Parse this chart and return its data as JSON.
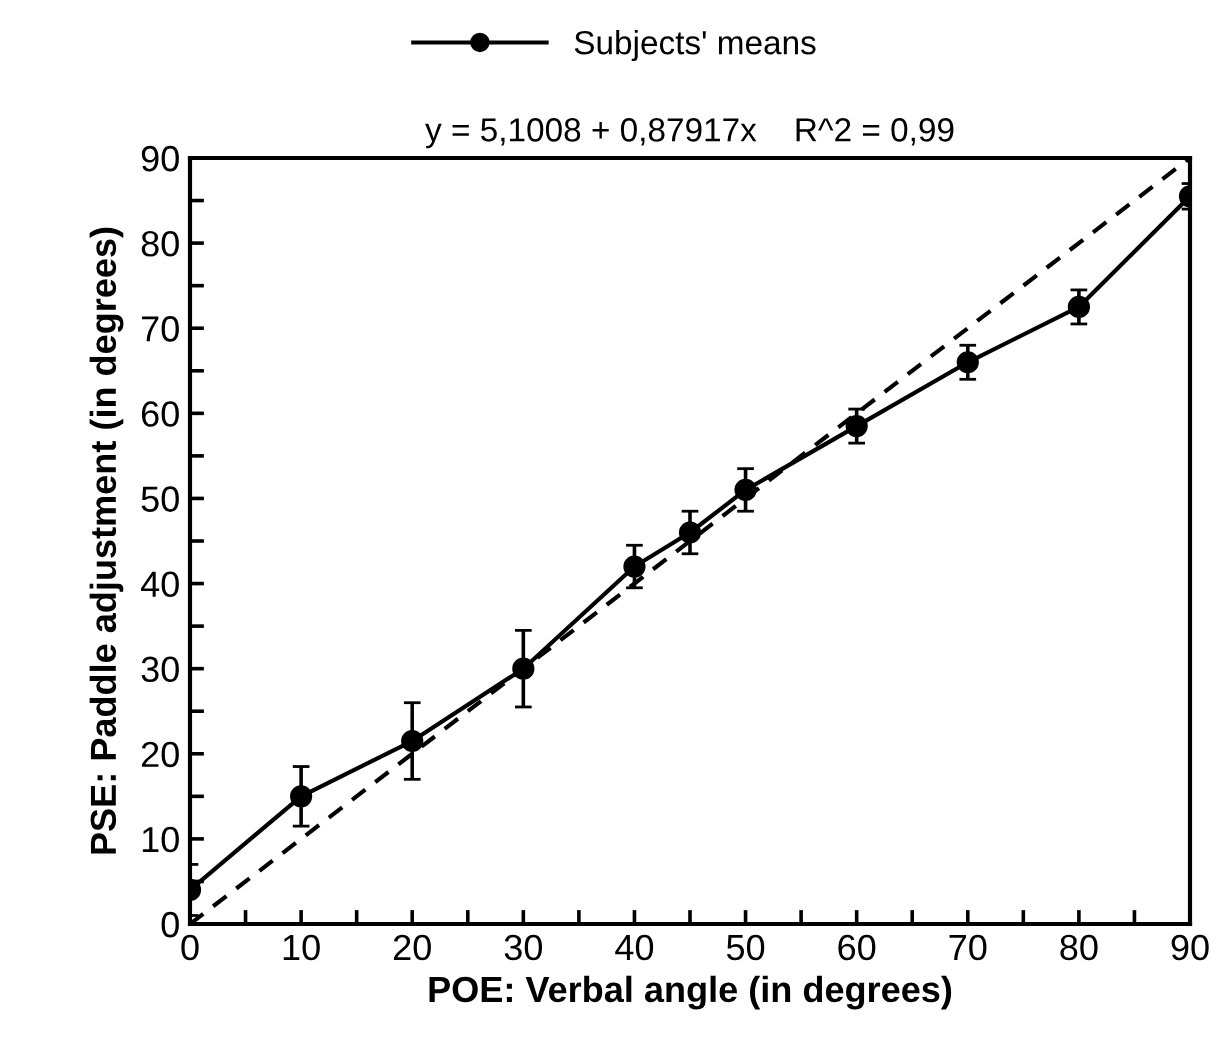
{
  "chart_data": {
    "type": "line",
    "title": "y = 5,1008 + 0,87917x    R^2 = 0,99",
    "xlabel": "POE: Verbal angle (in degrees)",
    "ylabel": "PSE: Paddle adjustment (in degrees)",
    "x": [
      0,
      10,
      20,
      30,
      40,
      45,
      50,
      60,
      70,
      80,
      90
    ],
    "series": [
      {
        "name": "Subjects' means",
        "color": "#000000",
        "marker": "circle",
        "line_style": "solid",
        "values": [
          4,
          15,
          21.5,
          30,
          42,
          46,
          51,
          58.5,
          66,
          72.5,
          85.5
        ],
        "errors": [
          3,
          3.5,
          4.5,
          4.5,
          2.5,
          2.5,
          2.5,
          2,
          2,
          2,
          1.5
        ]
      },
      {
        "color": "#000000",
        "marker": "none",
        "line_style": "dashed",
        "x": [
          0,
          90
        ],
        "values": [
          0,
          90
        ]
      }
    ],
    "xlim": [
      0,
      90
    ],
    "ylim": [
      0,
      90
    ],
    "xticks": [
      0,
      {
        "value": 5,
        "label": null
      },
      10,
      {
        "value": 15,
        "label": null
      },
      20,
      {
        "value": 25,
        "label": null
      },
      30,
      {
        "value": 35,
        "label": null
      },
      40,
      {
        "value": 45,
        "label": null
      },
      50,
      {
        "value": 55,
        "label": null
      },
      60,
      {
        "value": 65,
        "label": null
      },
      70,
      {
        "value": 75,
        "label": null
      },
      80,
      {
        "value": 85,
        "label": null
      },
      90
    ],
    "yticks": [
      0,
      {
        "value": 5,
        "label": null
      },
      10,
      {
        "value": 15,
        "label": null
      },
      20,
      {
        "value": 25,
        "label": null
      },
      30,
      {
        "value": 35,
        "label": null
      },
      40,
      {
        "value": 45,
        "label": null
      },
      50,
      {
        "value": 55,
        "label": null
      },
      60,
      {
        "value": 65,
        "label": null
      },
      70,
      {
        "value": 75,
        "label": null
      },
      80,
      {
        "value": 85,
        "label": null
      },
      90
    ],
    "grid": false,
    "legend": "top"
  }
}
